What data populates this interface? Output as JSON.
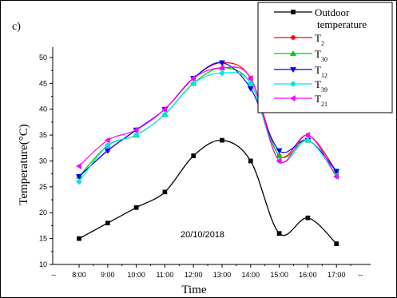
{
  "chart_data": {
    "type": "line",
    "panel_label": "c)",
    "xlabel": "Time",
    "ylabel": "Temperature(°C)",
    "annotation": "20/10/2018",
    "categories": [
      "8:00",
      "9:00",
      "10:00",
      "11:00",
      "12:00",
      "13:00",
      "14:00",
      "15:00",
      "16:00",
      "17:00"
    ],
    "x_overflow_ticks": [
      "--",
      "--"
    ],
    "yticks": [
      "10",
      "15",
      "20",
      "25",
      "30",
      "35",
      "40",
      "45",
      "50"
    ],
    "ylim": [
      10,
      52
    ],
    "grid": false,
    "legend_position": "top-right",
    "series": [
      {
        "name": "Outdoor temperature",
        "legend_main": "Outdoor",
        "legend_extra": "temperature",
        "color": "#000000",
        "marker": "square",
        "values": [
          15,
          18,
          21,
          24,
          31,
          34,
          30,
          16,
          19,
          14
        ]
      },
      {
        "name": "T2",
        "legend_main": "T",
        "legend_sub": "2",
        "color": "#ff0000",
        "marker": "circle",
        "values": [
          27,
          32,
          36,
          40,
          46,
          49,
          46,
          31,
          35,
          28
        ]
      },
      {
        "name": "T30",
        "legend_main": "T",
        "legend_sub": "30",
        "color": "#00cc00",
        "marker": "triangle-up",
        "values": [
          27,
          33,
          35,
          39,
          45,
          48,
          45,
          31,
          34,
          28
        ]
      },
      {
        "name": "T12",
        "legend_main": "T",
        "legend_sub": "12",
        "color": "#0000ff",
        "marker": "triangle-down",
        "values": [
          27,
          32,
          36,
          40,
          46,
          49,
          44,
          32,
          34,
          28
        ]
      },
      {
        "name": "T39",
        "legend_main": "T",
        "legend_sub": "39",
        "color": "#00e5e5",
        "marker": "diamond",
        "values": [
          26,
          33,
          35,
          39,
          45,
          47,
          45,
          30,
          34,
          27
        ]
      },
      {
        "name": "T21",
        "legend_main": "T",
        "legend_sub": "21",
        "color": "#ff00ff",
        "marker": "triangle-left",
        "values": [
          29,
          34,
          36,
          40,
          46,
          48,
          46,
          30,
          35,
          27
        ]
      }
    ]
  }
}
